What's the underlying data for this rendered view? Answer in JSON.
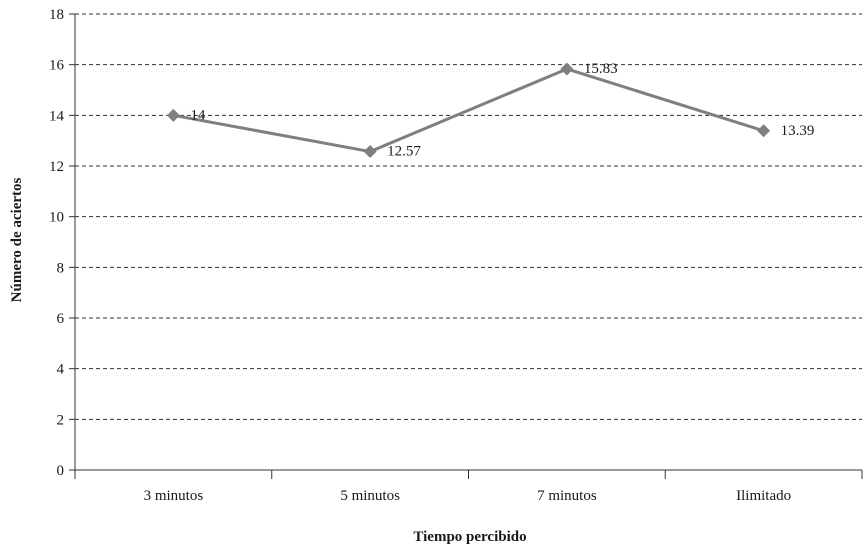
{
  "chart_data": {
    "type": "line",
    "categories": [
      "3 minutos",
      "5 minutos",
      "7 minutos",
      "Ilimitado"
    ],
    "series": [
      {
        "values": [
          14,
          12.57,
          15.83,
          13.39
        ],
        "labels": [
          "14",
          "12.57",
          "15.83",
          "13.39"
        ]
      }
    ],
    "xlabel": "Tiempo percibido",
    "ylabel": "Número de aciertos",
    "ylim": [
      0,
      18
    ],
    "yticks": [
      "0",
      "2",
      "4",
      "6",
      "8",
      "10",
      "12",
      "14",
      "16",
      "18"
    ],
    "grid": true,
    "marker": "diamond",
    "colors": {
      "line": "#7f7f7f",
      "marker": "#7f7f7f",
      "axis": "#333333",
      "grid": "#333333"
    }
  }
}
